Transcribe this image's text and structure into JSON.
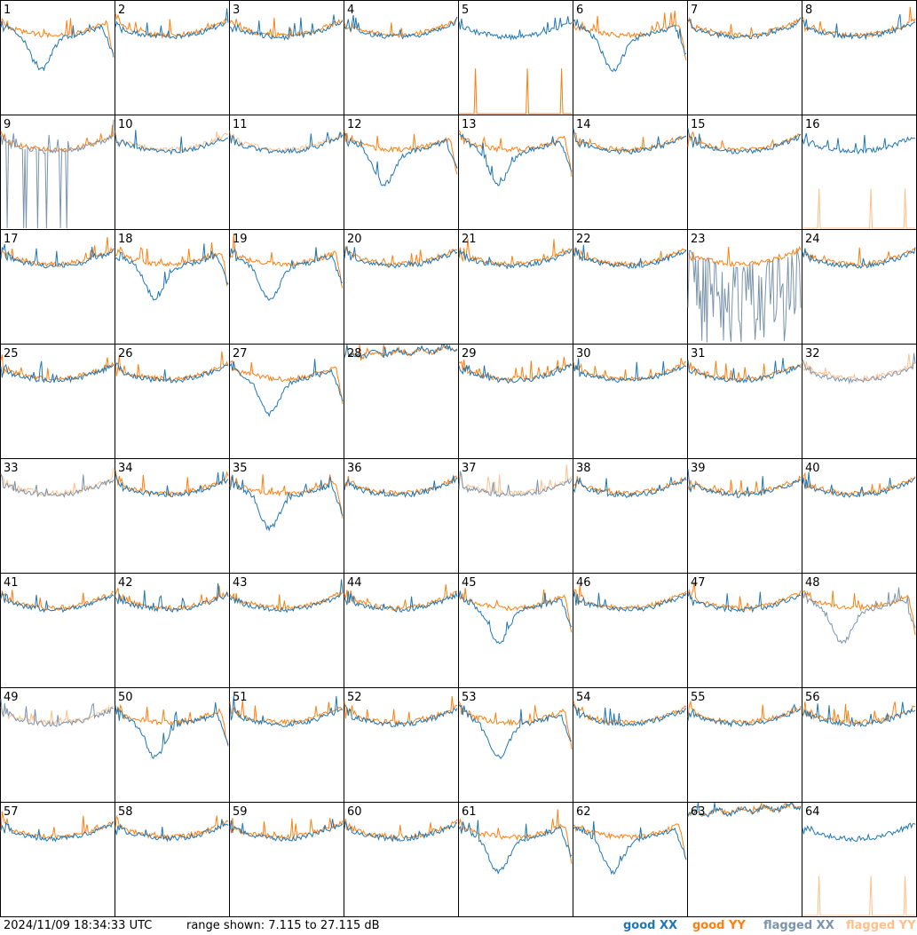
{
  "footer": {
    "timestamp": "2024/11/09 18:34:33 UTC",
    "range": "range shown: 7.115 to 27.115 dB",
    "legend": [
      "good XX",
      "good YY",
      "flagged XX",
      "flagged YY"
    ]
  },
  "colors": {
    "good_xx": "#1f77b4",
    "good_yy": "#ff7f0e",
    "flagged_xx": "#7a94ad",
    "flagged_yy": "#ffbf8a"
  },
  "chart_data": {
    "type": "line",
    "grid": "8x8",
    "ylim": [
      7.115,
      27.115
    ],
    "yunit": "dB",
    "panels": [
      {
        "label": "1",
        "xx": "good",
        "yy": "good",
        "shape": "droop"
      },
      {
        "label": "2",
        "xx": "good",
        "yy": "good",
        "shape": "normal"
      },
      {
        "label": "3",
        "xx": "good",
        "yy": "good",
        "shape": "normal"
      },
      {
        "label": "4",
        "xx": "good",
        "yy": "good",
        "shape": "normal"
      },
      {
        "label": "5",
        "xx": "good",
        "yy": "good",
        "shape": "spikes"
      },
      {
        "label": "6",
        "xx": "good",
        "yy": "good",
        "shape": "droop"
      },
      {
        "label": "7",
        "xx": "good",
        "yy": "good",
        "shape": "normal"
      },
      {
        "label": "8",
        "xx": "good",
        "yy": "good",
        "shape": "normal"
      },
      {
        "label": "9",
        "xx": "flagged",
        "yy": "good",
        "shape": "spikes"
      },
      {
        "label": "10",
        "xx": "good",
        "yy": "flagged",
        "shape": "normal"
      },
      {
        "label": "11",
        "xx": "good",
        "yy": "flagged",
        "shape": "normal"
      },
      {
        "label": "12",
        "xx": "good",
        "yy": "good",
        "shape": "droop"
      },
      {
        "label": "13",
        "xx": "good",
        "yy": "good",
        "shape": "droop"
      },
      {
        "label": "14",
        "xx": "good",
        "yy": "good",
        "shape": "normal"
      },
      {
        "label": "15",
        "xx": "good",
        "yy": "good",
        "shape": "normal"
      },
      {
        "label": "16",
        "xx": "good",
        "yy": "flagged",
        "shape": "spikes"
      },
      {
        "label": "17",
        "xx": "good",
        "yy": "good",
        "shape": "normal"
      },
      {
        "label": "18",
        "xx": "good",
        "yy": "good",
        "shape": "droop"
      },
      {
        "label": "19",
        "xx": "good",
        "yy": "good",
        "shape": "droop"
      },
      {
        "label": "20",
        "xx": "good",
        "yy": "good",
        "shape": "normal"
      },
      {
        "label": "21",
        "xx": "good",
        "yy": "good",
        "shape": "normal"
      },
      {
        "label": "22",
        "xx": "good",
        "yy": "good",
        "shape": "normal"
      },
      {
        "label": "23",
        "xx": "flagged",
        "yy": "good",
        "shape": "noisy"
      },
      {
        "label": "24",
        "xx": "good",
        "yy": "good",
        "shape": "normal"
      },
      {
        "label": "25",
        "xx": "good",
        "yy": "good",
        "shape": "normal"
      },
      {
        "label": "26",
        "xx": "good",
        "yy": "good",
        "shape": "normal"
      },
      {
        "label": "27",
        "xx": "good",
        "yy": "good",
        "shape": "droop"
      },
      {
        "label": "28",
        "xx": "good",
        "yy": "good",
        "shape": "flat"
      },
      {
        "label": "29",
        "xx": "good",
        "yy": "good",
        "shape": "normal"
      },
      {
        "label": "30",
        "xx": "good",
        "yy": "good",
        "shape": "normal"
      },
      {
        "label": "31",
        "xx": "good",
        "yy": "good",
        "shape": "normal"
      },
      {
        "label": "32",
        "xx": "flagged",
        "yy": "flagged",
        "shape": "spikes"
      },
      {
        "label": "33",
        "xx": "flagged",
        "yy": "flagged",
        "shape": "normal"
      },
      {
        "label": "34",
        "xx": "good",
        "yy": "good",
        "shape": "spikes"
      },
      {
        "label": "35",
        "xx": "good",
        "yy": "good",
        "shape": "droop"
      },
      {
        "label": "36",
        "xx": "good",
        "yy": "good",
        "shape": "normal"
      },
      {
        "label": "37",
        "xx": "flagged",
        "yy": "flagged",
        "shape": "normal"
      },
      {
        "label": "38",
        "xx": "good",
        "yy": "good",
        "shape": "normal"
      },
      {
        "label": "39",
        "xx": "good",
        "yy": "good",
        "shape": "normal"
      },
      {
        "label": "40",
        "xx": "good",
        "yy": "good",
        "shape": "normal"
      },
      {
        "label": "41",
        "xx": "good",
        "yy": "good",
        "shape": "normal"
      },
      {
        "label": "42",
        "xx": "good",
        "yy": "good",
        "shape": "normal"
      },
      {
        "label": "43",
        "xx": "good",
        "yy": "good",
        "shape": "normal"
      },
      {
        "label": "44",
        "xx": "good",
        "yy": "good",
        "shape": "normal"
      },
      {
        "label": "45",
        "xx": "good",
        "yy": "good",
        "shape": "droop"
      },
      {
        "label": "46",
        "xx": "good",
        "yy": "good",
        "shape": "normal"
      },
      {
        "label": "47",
        "xx": "good",
        "yy": "good",
        "shape": "normal"
      },
      {
        "label": "48",
        "xx": "flagged",
        "yy": "good",
        "shape": "droop"
      },
      {
        "label": "49",
        "xx": "flagged",
        "yy": "flagged",
        "shape": "normal"
      },
      {
        "label": "50",
        "xx": "good",
        "yy": "good",
        "shape": "droop"
      },
      {
        "label": "51",
        "xx": "good",
        "yy": "good",
        "shape": "normal"
      },
      {
        "label": "52",
        "xx": "good",
        "yy": "good",
        "shape": "normal"
      },
      {
        "label": "53",
        "xx": "good",
        "yy": "good",
        "shape": "droop"
      },
      {
        "label": "54",
        "xx": "good",
        "yy": "good",
        "shape": "normal"
      },
      {
        "label": "55",
        "xx": "good",
        "yy": "good",
        "shape": "spikes"
      },
      {
        "label": "56",
        "xx": "good",
        "yy": "good",
        "shape": "normal"
      },
      {
        "label": "57",
        "xx": "good",
        "yy": "good",
        "shape": "normal"
      },
      {
        "label": "58",
        "xx": "good",
        "yy": "good",
        "shape": "normal"
      },
      {
        "label": "59",
        "xx": "good",
        "yy": "good",
        "shape": "normal"
      },
      {
        "label": "60",
        "xx": "good",
        "yy": "good",
        "shape": "normal"
      },
      {
        "label": "61",
        "xx": "good",
        "yy": "good",
        "shape": "droop"
      },
      {
        "label": "62",
        "xx": "good",
        "yy": "good",
        "shape": "droop"
      },
      {
        "label": "63",
        "xx": "good",
        "yy": "good",
        "shape": "flat"
      },
      {
        "label": "64",
        "xx": "good",
        "yy": "flagged",
        "shape": "spikes"
      }
    ]
  }
}
